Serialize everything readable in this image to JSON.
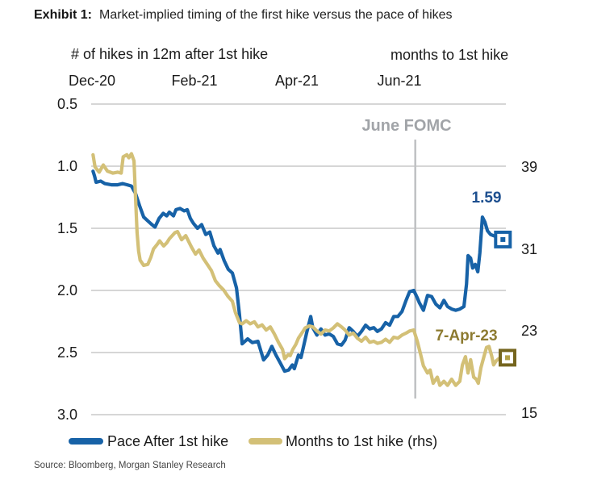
{
  "title": {
    "prefix": "Exhibit 1:",
    "text": "Market-implied timing of the first hike versus the pace of hikes"
  },
  "axes": {
    "left_header": "# of hikes in 12m after 1st hike",
    "right_header": "months to 1st hike",
    "x_ticks": [
      "Dec-20",
      "Feb-21",
      "Apr-21",
      "Jun-21"
    ],
    "left_ticks": [
      "0.5",
      "1.0",
      "1.5",
      "2.0",
      "2.5",
      "3.0"
    ],
    "right_ticks": [
      "39",
      "31",
      "23",
      "15"
    ]
  },
  "annotations": {
    "fomc": "June FOMC",
    "pace_last": "1.59",
    "months_last": "7-Apr-23"
  },
  "legend": [
    {
      "label": "Pace After 1st hike",
      "color": "#1762a7"
    },
    {
      "label": "Months to 1st hike (rhs)",
      "color": "#d3c077"
    }
  ],
  "source": "Source: Bloomberg, Morgan Stanley Research",
  "colors": {
    "pace_line": "#1762a7",
    "months_line": "#d3c077",
    "gridline": "#c9c9c9",
    "fomc_line": "#bfc1c3",
    "pace_marker_stroke": "#1762a7",
    "pace_marker_dot": "#1762a7",
    "months_marker_stroke": "#75651e",
    "months_marker_dot": "#b4a148"
  },
  "chart_data": {
    "type": "line",
    "title": "Market-implied timing of the first hike versus the pace of hikes",
    "x_unit": "months after Dec-20",
    "x_ticks": [
      {
        "label": "Dec-20",
        "x": 0
      },
      {
        "label": "Feb-21",
        "x": 2
      },
      {
        "label": "Apr-21",
        "x": 4
      },
      {
        "label": "Jun-21",
        "x": 6
      }
    ],
    "left_axis": {
      "label": "# of hikes in 12m after 1st hike",
      "ticks": [
        0.5,
        1.0,
        1.5,
        2.0,
        2.5,
        3.0
      ],
      "range": [
        0.5,
        3.0
      ],
      "inverted": true
    },
    "right_axis": {
      "label": "months to 1st hike",
      "ticks": [
        39,
        31,
        23,
        15
      ]
    },
    "grid": true,
    "legend_position": "bottom",
    "vline": {
      "label": "June FOMC",
      "x": 6.31
    },
    "series": [
      {
        "id": "pace",
        "name": "Pace After 1st hike",
        "axis": "left",
        "color": "#1762a7",
        "last_value": 1.59,
        "end_marker": {
          "x": 8.02,
          "y": 1.59,
          "stroke": "#1762a7",
          "dot": "#1762a7"
        },
        "points": [
          [
            0.02,
            1.04
          ],
          [
            0.05,
            1.08
          ],
          [
            0.08,
            1.13
          ],
          [
            0.17,
            1.12
          ],
          [
            0.25,
            1.14
          ],
          [
            0.38,
            1.15
          ],
          [
            0.5,
            1.15
          ],
          [
            0.6,
            1.14
          ],
          [
            0.69,
            1.15
          ],
          [
            0.77,
            1.16
          ],
          [
            0.85,
            1.22
          ],
          [
            0.93,
            1.32
          ],
          [
            1.01,
            1.41
          ],
          [
            1.09,
            1.44
          ],
          [
            1.17,
            1.47
          ],
          [
            1.23,
            1.49
          ],
          [
            1.31,
            1.42
          ],
          [
            1.39,
            1.38
          ],
          [
            1.46,
            1.4
          ],
          [
            1.51,
            1.37
          ],
          [
            1.59,
            1.4
          ],
          [
            1.64,
            1.35
          ],
          [
            1.72,
            1.34
          ],
          [
            1.8,
            1.36
          ],
          [
            1.86,
            1.35
          ],
          [
            1.92,
            1.42
          ],
          [
            1.98,
            1.46
          ],
          [
            2.06,
            1.5
          ],
          [
            2.14,
            1.47
          ],
          [
            2.22,
            1.55
          ],
          [
            2.3,
            1.53
          ],
          [
            2.38,
            1.64
          ],
          [
            2.46,
            1.7
          ],
          [
            2.5,
            1.67
          ],
          [
            2.58,
            1.76
          ],
          [
            2.66,
            1.83
          ],
          [
            2.74,
            1.86
          ],
          [
            2.82,
            1.98
          ],
          [
            2.88,
            2.2
          ],
          [
            2.93,
            2.43
          ],
          [
            3.04,
            2.39
          ],
          [
            3.13,
            2.42
          ],
          [
            3.24,
            2.41
          ],
          [
            3.35,
            2.56
          ],
          [
            3.43,
            2.52
          ],
          [
            3.51,
            2.45
          ],
          [
            3.59,
            2.52
          ],
          [
            3.67,
            2.58
          ],
          [
            3.76,
            2.65
          ],
          [
            3.84,
            2.64
          ],
          [
            3.91,
            2.6
          ],
          [
            3.95,
            2.63
          ],
          [
            4.03,
            2.52
          ],
          [
            4.08,
            2.54
          ],
          [
            4.19,
            2.34
          ],
          [
            4.27,
            2.21
          ],
          [
            4.31,
            2.3
          ],
          [
            4.39,
            2.36
          ],
          [
            4.47,
            2.31
          ],
          [
            4.55,
            2.36
          ],
          [
            4.63,
            2.35
          ],
          [
            4.71,
            2.37
          ],
          [
            4.79,
            2.43
          ],
          [
            4.87,
            2.44
          ],
          [
            4.94,
            2.4
          ],
          [
            5.02,
            2.3
          ],
          [
            5.1,
            2.33
          ],
          [
            5.18,
            2.37
          ],
          [
            5.26,
            2.33
          ],
          [
            5.34,
            2.28
          ],
          [
            5.42,
            2.31
          ],
          [
            5.5,
            2.3
          ],
          [
            5.57,
            2.33
          ],
          [
            5.65,
            2.31
          ],
          [
            5.73,
            2.26
          ],
          [
            5.81,
            2.28
          ],
          [
            5.89,
            2.21
          ],
          [
            5.97,
            2.21
          ],
          [
            6.05,
            2.17
          ],
          [
            6.13,
            2.08
          ],
          [
            6.2,
            2.01
          ],
          [
            6.28,
            2.0
          ],
          [
            6.35,
            2.06
          ],
          [
            6.39,
            2.1
          ],
          [
            6.47,
            2.16
          ],
          [
            6.55,
            2.04
          ],
          [
            6.63,
            2.05
          ],
          [
            6.71,
            2.11
          ],
          [
            6.79,
            2.14
          ],
          [
            6.87,
            2.08
          ],
          [
            6.94,
            2.13
          ],
          [
            7.02,
            2.15
          ],
          [
            7.1,
            2.16
          ],
          [
            7.18,
            2.15
          ],
          [
            7.26,
            2.13
          ],
          [
            7.31,
            1.95
          ],
          [
            7.34,
            1.72
          ],
          [
            7.39,
            1.74
          ],
          [
            7.43,
            1.82
          ],
          [
            7.48,
            1.79
          ],
          [
            7.53,
            1.85
          ],
          [
            7.57,
            1.7
          ],
          [
            7.62,
            1.41
          ],
          [
            7.67,
            1.45
          ],
          [
            7.72,
            1.52
          ],
          [
            7.78,
            1.55
          ],
          [
            7.84,
            1.56
          ],
          [
            7.91,
            1.57
          ],
          [
            7.97,
            1.59
          ]
        ]
      },
      {
        "id": "months",
        "name": "Months to 1st hike (rhs)",
        "axis": "right",
        "color": "#d3c077",
        "last_value": 20.4,
        "end_marker": {
          "x": 8.11,
          "y": 20.4,
          "stroke": "#75651e",
          "dot": "#b4a148"
        },
        "points": [
          [
            0.02,
            40.2
          ],
          [
            0.06,
            39.0
          ],
          [
            0.14,
            38.5
          ],
          [
            0.22,
            39.2
          ],
          [
            0.3,
            38.6
          ],
          [
            0.41,
            38.4
          ],
          [
            0.5,
            38.5
          ],
          [
            0.57,
            38.4
          ],
          [
            0.61,
            40.0
          ],
          [
            0.68,
            40.2
          ],
          [
            0.72,
            39.9
          ],
          [
            0.77,
            40.3
          ],
          [
            0.82,
            39.6
          ],
          [
            0.85,
            36.0
          ],
          [
            0.88,
            32.6
          ],
          [
            0.91,
            30.8
          ],
          [
            0.94,
            29.9
          ],
          [
            1.01,
            29.4
          ],
          [
            1.09,
            29.5
          ],
          [
            1.15,
            30.2
          ],
          [
            1.2,
            31.0
          ],
          [
            1.28,
            31.5
          ],
          [
            1.32,
            31.8
          ],
          [
            1.4,
            31.3
          ],
          [
            1.46,
            31.6
          ],
          [
            1.51,
            32.0
          ],
          [
            1.62,
            32.6
          ],
          [
            1.67,
            32.7
          ],
          [
            1.75,
            31.9
          ],
          [
            1.83,
            32.3
          ],
          [
            1.94,
            31.2
          ],
          [
            2.02,
            30.5
          ],
          [
            2.09,
            30.9
          ],
          [
            2.17,
            30.1
          ],
          [
            2.25,
            29.5
          ],
          [
            2.33,
            28.9
          ],
          [
            2.41,
            27.9
          ],
          [
            2.49,
            27.4
          ],
          [
            2.57,
            27.0
          ],
          [
            2.65,
            26.4
          ],
          [
            2.74,
            25.9
          ],
          [
            2.8,
            24.8
          ],
          [
            2.88,
            23.8
          ],
          [
            2.93,
            23.7
          ],
          [
            3.01,
            24.0
          ],
          [
            3.09,
            23.7
          ],
          [
            3.17,
            23.9
          ],
          [
            3.24,
            23.4
          ],
          [
            3.32,
            23.6
          ],
          [
            3.4,
            23.1
          ],
          [
            3.48,
            23.4
          ],
          [
            3.56,
            22.7
          ],
          [
            3.64,
            21.9
          ],
          [
            3.72,
            21.2
          ],
          [
            3.76,
            20.3
          ],
          [
            3.83,
            20.7
          ],
          [
            3.87,
            20.6
          ],
          [
            3.92,
            21.2
          ],
          [
            3.98,
            21.7
          ],
          [
            4.03,
            22.3
          ],
          [
            4.11,
            22.9
          ],
          [
            4.16,
            23.3
          ],
          [
            4.24,
            23.5
          ],
          [
            4.31,
            23.4
          ],
          [
            4.39,
            23.0
          ],
          [
            4.47,
            22.7
          ],
          [
            4.55,
            23.1
          ],
          [
            4.63,
            23.0
          ],
          [
            4.71,
            23.3
          ],
          [
            4.79,
            23.7
          ],
          [
            4.87,
            23.4
          ],
          [
            4.94,
            23.1
          ],
          [
            5.02,
            22.6
          ],
          [
            5.1,
            22.8
          ],
          [
            5.18,
            22.3
          ],
          [
            5.26,
            22.0
          ],
          [
            5.34,
            22.4
          ],
          [
            5.42,
            21.9
          ],
          [
            5.5,
            22.0
          ],
          [
            5.57,
            21.8
          ],
          [
            5.65,
            21.9
          ],
          [
            5.73,
            22.2
          ],
          [
            5.81,
            21.9
          ],
          [
            5.89,
            22.4
          ],
          [
            5.97,
            22.3
          ],
          [
            6.05,
            22.6
          ],
          [
            6.13,
            22.8
          ],
          [
            6.2,
            23.0
          ],
          [
            6.28,
            23.1
          ],
          [
            6.35,
            22.0
          ],
          [
            6.39,
            21.2
          ],
          [
            6.47,
            19.6
          ],
          [
            6.55,
            18.9
          ],
          [
            6.6,
            19.2
          ],
          [
            6.66,
            17.9
          ],
          [
            6.74,
            18.5
          ],
          [
            6.79,
            17.7
          ],
          [
            6.87,
            18.1
          ],
          [
            6.94,
            17.7
          ],
          [
            7.02,
            18.3
          ],
          [
            7.1,
            17.7
          ],
          [
            7.18,
            18.1
          ],
          [
            7.23,
            19.7
          ],
          [
            7.29,
            20.5
          ],
          [
            7.34,
            18.9
          ],
          [
            7.39,
            20.2
          ],
          [
            7.45,
            18.5
          ],
          [
            7.5,
            18.3
          ],
          [
            7.54,
            17.9
          ],
          [
            7.59,
            19.4
          ],
          [
            7.65,
            20.5
          ],
          [
            7.7,
            21.4
          ],
          [
            7.75,
            21.5
          ],
          [
            7.8,
            20.6
          ],
          [
            7.84,
            19.7
          ],
          [
            7.89,
            20.1
          ],
          [
            7.94,
            20.3
          ],
          [
            8.0,
            20.4
          ]
        ]
      }
    ]
  }
}
